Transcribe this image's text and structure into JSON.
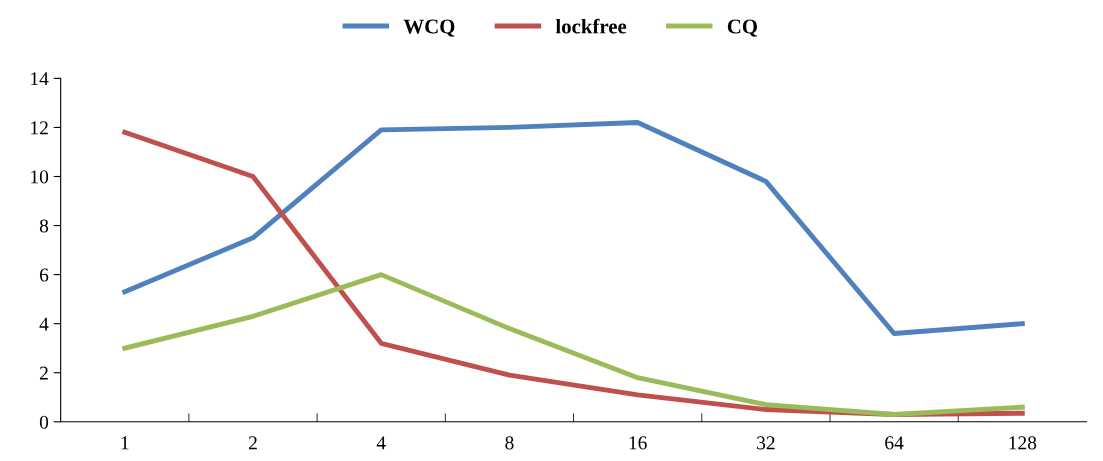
{
  "chart_data": {
    "type": "line",
    "categories": [
      "1",
      "2",
      "4",
      "8",
      "16",
      "32",
      "64",
      "128"
    ],
    "series": [
      {
        "name": "WCQ",
        "color": "#4f81bd",
        "values": [
          5.3,
          7.5,
          11.9,
          12.0,
          12.2,
          9.8,
          3.6,
          4.0
        ]
      },
      {
        "name": "lockfree",
        "color": "#c0504d",
        "values": [
          11.8,
          10.0,
          3.2,
          1.9,
          1.1,
          0.5,
          0.3,
          0.35
        ]
      },
      {
        "name": "CQ",
        "color": "#9bbb59",
        "values": [
          3.0,
          4.3,
          6.0,
          3.8,
          1.8,
          0.7,
          0.3,
          0.6
        ]
      }
    ],
    "ylim": [
      0,
      14
    ],
    "yticks": [
      0,
      2,
      4,
      6,
      8,
      10,
      12,
      14
    ],
    "grid": false,
    "legend": "top",
    "marker": "none",
    "line_style": "solid"
  }
}
